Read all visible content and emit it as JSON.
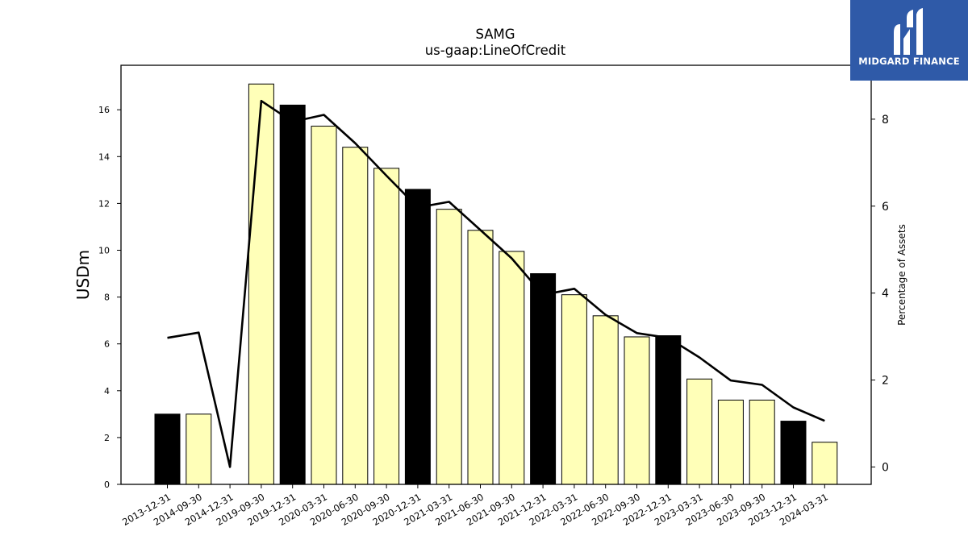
{
  "chart_data": {
    "type": "bar",
    "title": "SAMG",
    "subtitle": "us-gaap:LineOfCredit",
    "ylabel": "USDm",
    "y2label": "Percentage of Assets",
    "categories": [
      "2013-12-31",
      "2014-09-30",
      "2014-12-31",
      "2019-09-30",
      "2019-12-31",
      "2020-03-31",
      "2020-06-30",
      "2020-09-30",
      "2020-12-31",
      "2021-03-31",
      "2021-06-30",
      "2021-09-30",
      "2021-12-31",
      "2022-03-31",
      "2022-06-30",
      "2022-09-30",
      "2022-12-31",
      "2023-03-31",
      "2023-06-30",
      "2023-09-30",
      "2023-12-31",
      "2024-03-31"
    ],
    "series": [
      {
        "values": [
          3.0,
          3.0,
          0.0,
          17.1,
          16.2,
          15.3,
          14.4,
          13.5,
          12.6,
          11.75,
          10.85,
          9.95,
          9.0,
          8.1,
          7.2,
          6.3,
          6.35,
          4.5,
          3.6,
          3.6,
          2.7,
          1.8
        ]
      },
      {
        "values": [
          2.97,
          3.09,
          0.0,
          8.42,
          7.94,
          8.1,
          7.45,
          6.7,
          5.97,
          6.1,
          5.45,
          4.8,
          3.96,
          4.1,
          3.5,
          3.08,
          2.97,
          2.52,
          1.99,
          1.89,
          1.37,
          1.06
        ],
        "axis": "right",
        "type": "line"
      }
    ],
    "year_end_color": "#000000",
    "quarter_color": "#ffffb8",
    "line_color": "#000000",
    "ylim": [
      0,
      17.9
    ],
    "y2lim": [
      -0.4,
      9.24
    ],
    "yticks": [
      0,
      2,
      4,
      6,
      8,
      10,
      12,
      14,
      16
    ],
    "y2ticks": [
      0,
      2,
      4,
      6,
      8
    ],
    "legend": "none",
    "grid": false
  },
  "logo": {
    "text": "MIDGARD FINANCE",
    "color": "#2f5aa8"
  }
}
